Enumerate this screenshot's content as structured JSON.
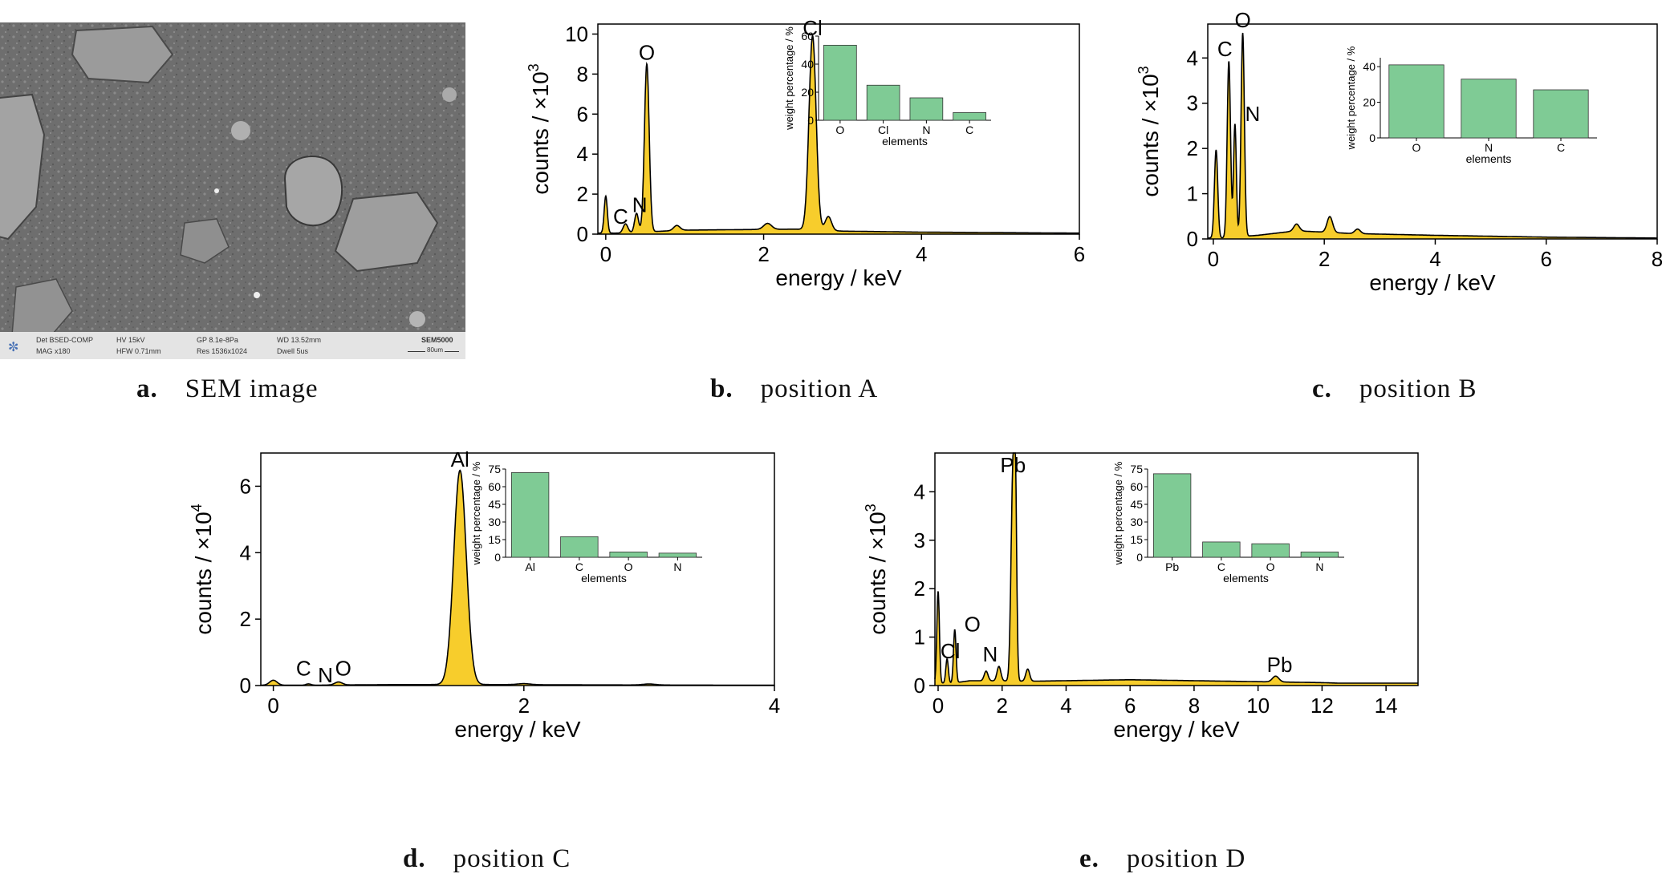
{
  "panels": {
    "a": {
      "letter": "a.",
      "caption": "SEM image"
    },
    "b": {
      "letter": "b.",
      "caption": "position A"
    },
    "c": {
      "letter": "c.",
      "caption": "position B"
    },
    "d": {
      "letter": "d.",
      "caption": "position C"
    },
    "e": {
      "letter": "e.",
      "caption": "position D"
    }
  },
  "sem": {
    "info": [
      "Det BSED-COMP",
      "MAG x180",
      "HV 15kV",
      "HFW 0.71mm",
      "GP 8.1e-8Pa",
      "Res 1536x1024",
      "WD 13.52mm",
      "Dwell 5us"
    ],
    "model": "SEM5000",
    "scale_label": "80um"
  },
  "colors": {
    "spectrum_fill": "#f7cd2c",
    "bar_fill": "#7fcb95",
    "line": "#000000"
  },
  "chart_data": [
    {
      "id": "b",
      "type": "area",
      "xlabel": "energy / keV",
      "ylabel": "counts / ×10",
      "ylabel_exp": "3",
      "xlim": [
        -0.1,
        6
      ],
      "ylim": [
        0,
        10.5
      ],
      "xticks": [
        0,
        2,
        4,
        6
      ],
      "yticks": [
        0,
        2,
        4,
        6,
        8,
        10
      ],
      "baseline": 0.05,
      "tail": [
        [
          1.0,
          0.2
        ],
        [
          2.4,
          0.25
        ],
        [
          3.0,
          0.15
        ],
        [
          4.0,
          0.1
        ],
        [
          6.0,
          0.05
        ]
      ],
      "peaks": [
        [
          0.0,
          1.85,
          0.02
        ],
        [
          0.25,
          0.45,
          0.03
        ],
        [
          0.39,
          0.95,
          0.025
        ],
        [
          0.52,
          8.4,
          0.03
        ],
        [
          0.9,
          0.25,
          0.04
        ],
        [
          2.05,
          0.3,
          0.05
        ],
        [
          2.62,
          9.7,
          0.045
        ],
        [
          2.82,
          0.7,
          0.04
        ]
      ],
      "peak_labels": [
        {
          "text": "O",
          "x": 0.52,
          "y": 8.4
        },
        {
          "text": "Cl",
          "x": 2.62,
          "y": 9.7
        },
        {
          "text": "N",
          "x": 0.39,
          "y": 0.95
        },
        {
          "text": "C",
          "x": 0.25,
          "y": 0.45
        }
      ],
      "inset": {
        "type": "bar",
        "xlabel": "elements",
        "ylabel": "weight percentage / %",
        "categories": [
          "O",
          "Cl",
          "N",
          "C"
        ],
        "values": [
          53.5,
          25,
          16,
          5.5
        ],
        "ylim": [
          0,
          60
        ],
        "yticks": [
          0,
          20,
          40,
          60
        ]
      }
    },
    {
      "id": "c",
      "type": "area",
      "xlabel": "energy / keV",
      "ylabel": "counts / ×10",
      "ylabel_exp": "3",
      "xlim": [
        -0.1,
        8
      ],
      "ylim": [
        0,
        4.75
      ],
      "xticks": [
        0,
        2,
        4,
        6,
        8
      ],
      "yticks": [
        0,
        1,
        2,
        3,
        4
      ],
      "baseline": 0.02,
      "tail": [
        [
          0.8,
          0.08
        ],
        [
          1.5,
          0.18
        ],
        [
          2.5,
          0.12
        ],
        [
          4.0,
          0.08
        ],
        [
          6.0,
          0.04
        ],
        [
          8.0,
          0.02
        ]
      ],
      "peaks": [
        [
          0.05,
          1.95,
          0.03
        ],
        [
          0.28,
          3.9,
          0.03
        ],
        [
          0.39,
          2.5,
          0.025
        ],
        [
          0.53,
          4.5,
          0.03
        ],
        [
          1.5,
          0.15,
          0.05
        ],
        [
          2.1,
          0.35,
          0.05
        ],
        [
          2.6,
          0.1,
          0.05
        ]
      ],
      "peak_labels": [
        {
          "text": "O",
          "x": 0.53,
          "y": 4.5
        },
        {
          "text": "C",
          "x": 0.28,
          "y": 3.9
        },
        {
          "text": "N",
          "x": 0.39,
          "y": 2.5
        }
      ],
      "inset": {
        "type": "bar",
        "xlabel": "elements",
        "ylabel": "weight percentage / %",
        "categories": [
          "O",
          "N",
          "C"
        ],
        "values": [
          41,
          33,
          27
        ],
        "ylim": [
          0,
          45
        ],
        "yticks": [
          0,
          20,
          40
        ]
      }
    },
    {
      "id": "d",
      "type": "area",
      "xlabel": "energy / keV",
      "ylabel": "counts / ×10",
      "ylabel_exp": "4",
      "xlim": [
        -0.1,
        4
      ],
      "ylim": [
        0,
        7
      ],
      "xticks": [
        0,
        2,
        4
      ],
      "yticks": [
        0,
        2,
        4,
        6
      ],
      "baseline": 0.01,
      "tail": [
        [
          1.0,
          0.03
        ],
        [
          1.8,
          0.03
        ],
        [
          2.5,
          0.02
        ],
        [
          4.0,
          0.01
        ]
      ],
      "peaks": [
        [
          0.0,
          0.15,
          0.03
        ],
        [
          0.28,
          0.04,
          0.02
        ],
        [
          0.52,
          0.09,
          0.03
        ],
        [
          1.49,
          6.45,
          0.05
        ],
        [
          2.0,
          0.03,
          0.05
        ],
        [
          3.0,
          0.03,
          0.05
        ]
      ],
      "peak_labels": [
        {
          "text": "Al",
          "x": 1.49,
          "y": 6.45
        },
        {
          "text": "C",
          "x": 0.28,
          "y": 0.3
        },
        {
          "text": "N",
          "x": 0.39,
          "y": 0.1
        },
        {
          "text": "O",
          "x": 0.52,
          "y": 0.3
        }
      ],
      "inset": {
        "type": "bar",
        "xlabel": "elements",
        "ylabel": "weight percentage / %",
        "categories": [
          "Al",
          "C",
          "O",
          "N"
        ],
        "values": [
          72,
          17.5,
          4.5,
          3.5
        ],
        "ylim": [
          0,
          75
        ],
        "yticks": [
          0,
          15,
          30,
          45,
          60,
          75
        ]
      }
    },
    {
      "id": "e",
      "type": "area",
      "xlabel": "energy / keV",
      "ylabel": "counts / ×10",
      "ylabel_exp": "3",
      "xlim": [
        -0.1,
        15
      ],
      "ylim": [
        0,
        4.8
      ],
      "xticks": [
        0,
        2,
        4,
        6,
        8,
        10,
        12,
        14
      ],
      "yticks": [
        0,
        1,
        2,
        3,
        4
      ],
      "baseline": 0.05,
      "tail": [
        [
          1.0,
          0.1
        ],
        [
          3.0,
          0.09
        ],
        [
          6.0,
          0.12
        ],
        [
          9.0,
          0.09
        ],
        [
          12.0,
          0.06
        ],
        [
          14.0,
          0.02
        ],
        [
          15.0,
          0.01
        ]
      ],
      "peaks": [
        [
          0.0,
          1.9,
          0.04
        ],
        [
          0.28,
          0.5,
          0.04
        ],
        [
          0.52,
          1.1,
          0.04
        ],
        [
          1.5,
          0.2,
          0.06
        ],
        [
          1.9,
          0.3,
          0.06
        ],
        [
          2.34,
          4.3,
          0.06
        ],
        [
          2.42,
          2.9,
          0.04
        ],
        [
          2.8,
          0.25,
          0.06
        ],
        [
          10.55,
          0.12,
          0.1
        ]
      ],
      "peak_labels": [
        {
          "text": "Pb",
          "x": 2.34,
          "y": 4.3
        },
        {
          "text": "O",
          "x": 0.52,
          "y": 0.95
        },
        {
          "text": "Cl",
          "x": 0.28,
          "y": 0.5
        },
        {
          "text": "N",
          "x": 0.75,
          "y": 0.3
        },
        {
          "text": "Pb",
          "x": 10.55,
          "y": 0.12
        }
      ],
      "inset": {
        "type": "bar",
        "xlabel": "elements",
        "ylabel": "weight percentage / %",
        "categories": [
          "Pb",
          "C",
          "O",
          "N"
        ],
        "values": [
          71,
          13,
          11.5,
          4.5
        ],
        "ylim": [
          0,
          75
        ],
        "yticks": [
          0,
          15,
          30,
          45,
          60,
          75
        ]
      }
    }
  ]
}
